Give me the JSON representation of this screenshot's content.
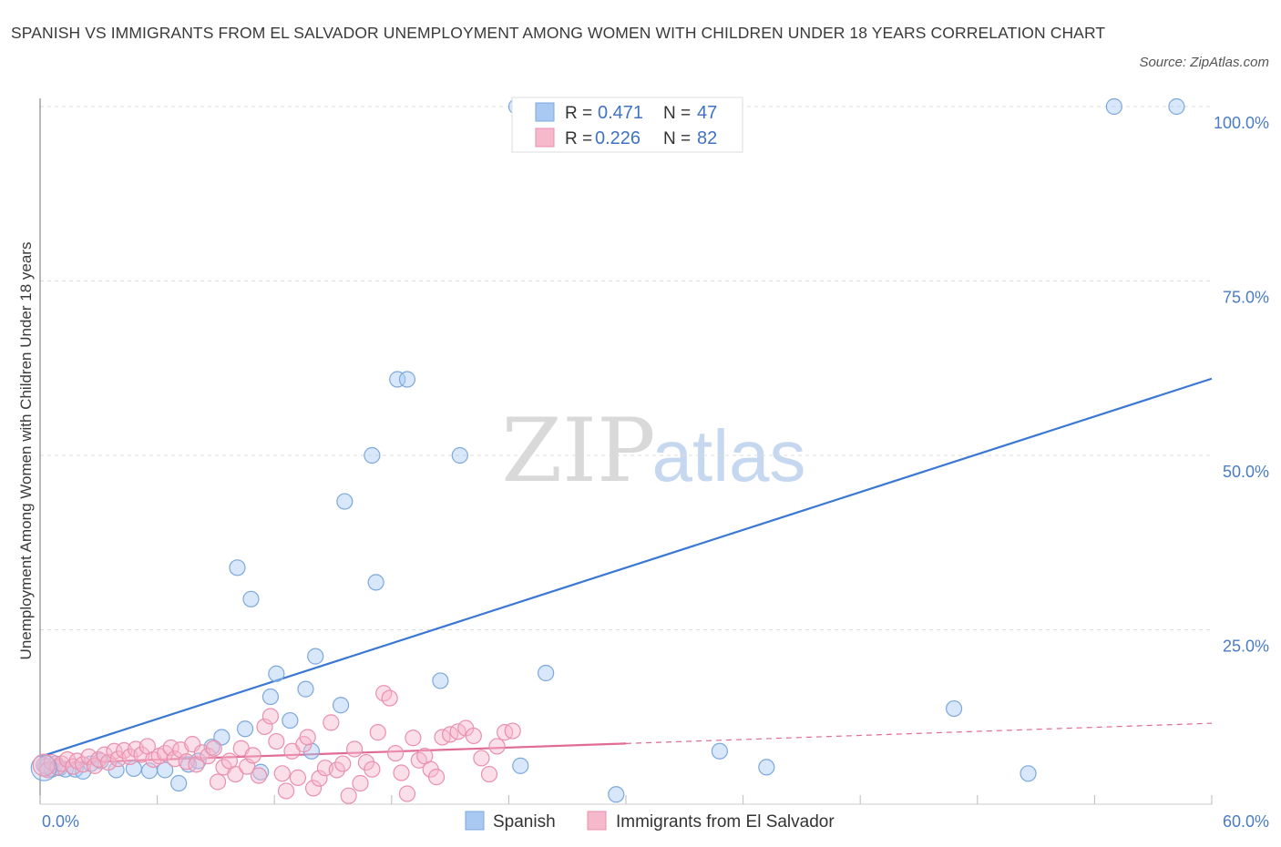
{
  "title": "SPANISH VS IMMIGRANTS FROM EL SALVADOR UNEMPLOYMENT AMONG WOMEN WITH CHILDREN UNDER 18 YEARS CORRELATION CHART",
  "source": "Source: ZipAtlas.com",
  "watermark": {
    "zip": "ZIP",
    "atlas": "atlas"
  },
  "legend": {
    "rows": [
      {
        "r_label": "R =",
        "r_value": "0.471",
        "n_label": "N =",
        "n_value": "47",
        "color": "#a9c9f3"
      },
      {
        "r_label": "R =",
        "r_value": "0.226",
        "n_label": "N =",
        "n_value": "82",
        "color": "#f6b8cb"
      }
    ]
  },
  "bottom_legend": [
    {
      "label": "Spanish",
      "color": "#a9c9f3"
    },
    {
      "label": "Immigrants from El Salvador",
      "color": "#f6b8cb"
    }
  ],
  "chart_data": {
    "type": "scatter",
    "ylabel": "Unemployment Among Women with Children Under 18 years",
    "xlim": [
      0,
      60
    ],
    "ylim": [
      0,
      100
    ],
    "x_tick_labels": {
      "min": "0.0%",
      "max": "60.0%"
    },
    "y_tick_labels": [
      {
        "value": 100,
        "label": "100.0%"
      },
      {
        "value": 75,
        "label": "75.0%"
      },
      {
        "value": 50,
        "label": "50.0%"
      },
      {
        "value": 25,
        "label": "25.0%"
      }
    ],
    "grid": true,
    "series": [
      {
        "name": "Spanish",
        "color": "#a9c9f3",
        "stroke": "#7da8dc",
        "trend": {
          "x0": 0,
          "y0": 6.8,
          "x1": 60,
          "y1": 61.0,
          "color": "#3a78d4"
        },
        "points": [
          [
            0.3,
            5.4
          ],
          [
            0.6,
            5.0
          ],
          [
            0.8,
            5.8
          ],
          [
            1.0,
            5.2
          ],
          [
            1.3,
            5.0
          ],
          [
            1.8,
            5.0
          ],
          [
            2.2,
            4.7
          ],
          [
            2.6,
            5.8
          ],
          [
            3.1,
            6.2
          ],
          [
            3.9,
            4.9
          ],
          [
            4.8,
            5.1
          ],
          [
            5.6,
            4.8
          ],
          [
            6.4,
            4.9
          ],
          [
            7.1,
            3.0
          ],
          [
            7.6,
            5.7
          ],
          [
            8.1,
            6.2
          ],
          [
            8.8,
            8.2
          ],
          [
            9.3,
            9.6
          ],
          [
            10.1,
            33.9
          ],
          [
            10.5,
            10.8
          ],
          [
            10.8,
            29.4
          ],
          [
            11.3,
            4.6
          ],
          [
            11.8,
            15.4
          ],
          [
            12.1,
            18.7
          ],
          [
            12.8,
            12.0
          ],
          [
            13.6,
            16.5
          ],
          [
            13.9,
            7.6
          ],
          [
            14.1,
            21.2
          ],
          [
            15.4,
            14.2
          ],
          [
            15.6,
            43.4
          ],
          [
            17.0,
            50.0
          ],
          [
            17.2,
            31.8
          ],
          [
            18.3,
            60.9
          ],
          [
            18.8,
            60.9
          ],
          [
            20.5,
            17.7
          ],
          [
            21.5,
            50.0
          ],
          [
            24.4,
            100.0
          ],
          [
            24.6,
            5.5
          ],
          [
            25.9,
            18.8
          ],
          [
            29.5,
            1.4
          ],
          [
            31.2,
            100.0
          ],
          [
            34.8,
            7.6
          ],
          [
            37.2,
            5.3
          ],
          [
            46.8,
            13.7
          ],
          [
            50.6,
            4.4
          ],
          [
            55.0,
            100.0
          ],
          [
            58.2,
            100.0
          ]
        ]
      },
      {
        "name": "Immigrants from El Salvador",
        "color": "#f6b8cb",
        "stroke": "#ea8fae",
        "trend": {
          "x0": 0,
          "y0": 5.8,
          "x1": 60,
          "y1": 11.6,
          "solid_until": 30,
          "color": "#e06b94"
        },
        "points": [
          [
            0.2,
            5.6
          ],
          [
            0.4,
            4.9
          ],
          [
            0.6,
            6.0
          ],
          [
            0.9,
            5.3
          ],
          [
            1.1,
            5.8
          ],
          [
            1.4,
            6.4
          ],
          [
            1.7,
            5.4
          ],
          [
            1.9,
            6.2
          ],
          [
            2.2,
            5.7
          ],
          [
            2.5,
            6.8
          ],
          [
            2.8,
            5.5
          ],
          [
            3.0,
            6.4
          ],
          [
            3.3,
            7.1
          ],
          [
            3.5,
            6.0
          ],
          [
            3.8,
            7.6
          ],
          [
            4.0,
            6.5
          ],
          [
            4.3,
            7.7
          ],
          [
            4.6,
            6.8
          ],
          [
            4.9,
            7.9
          ],
          [
            5.2,
            7.1
          ],
          [
            5.5,
            8.3
          ],
          [
            5.8,
            6.4
          ],
          [
            6.1,
            6.9
          ],
          [
            6.4,
            7.3
          ],
          [
            6.7,
            8.1
          ],
          [
            6.9,
            6.5
          ],
          [
            7.2,
            7.8
          ],
          [
            7.5,
            6.1
          ],
          [
            7.8,
            8.6
          ],
          [
            8.0,
            5.7
          ],
          [
            8.3,
            7.4
          ],
          [
            8.6,
            6.9
          ],
          [
            8.9,
            8.0
          ],
          [
            9.1,
            3.2
          ],
          [
            9.4,
            5.3
          ],
          [
            9.7,
            6.2
          ],
          [
            10.0,
            4.3
          ],
          [
            10.3,
            8.0
          ],
          [
            10.6,
            5.4
          ],
          [
            10.9,
            7.0
          ],
          [
            11.2,
            4.1
          ],
          [
            11.5,
            11.1
          ],
          [
            11.8,
            12.6
          ],
          [
            12.1,
            9.0
          ],
          [
            12.4,
            4.4
          ],
          [
            12.6,
            1.9
          ],
          [
            12.9,
            7.6
          ],
          [
            13.2,
            3.8
          ],
          [
            13.5,
            8.6
          ],
          [
            13.7,
            9.6
          ],
          [
            14.0,
            2.3
          ],
          [
            14.3,
            3.7
          ],
          [
            14.6,
            5.2
          ],
          [
            14.9,
            11.7
          ],
          [
            15.2,
            4.9
          ],
          [
            15.5,
            5.8
          ],
          [
            15.8,
            1.2
          ],
          [
            16.1,
            7.9
          ],
          [
            16.4,
            3.0
          ],
          [
            16.7,
            6.0
          ],
          [
            17.0,
            5.0
          ],
          [
            17.3,
            10.3
          ],
          [
            17.6,
            15.9
          ],
          [
            17.9,
            15.2
          ],
          [
            18.2,
            7.3
          ],
          [
            18.5,
            4.5
          ],
          [
            18.8,
            1.5
          ],
          [
            19.1,
            9.5
          ],
          [
            19.4,
            6.3
          ],
          [
            19.7,
            6.9
          ],
          [
            20.0,
            5.0
          ],
          [
            20.3,
            3.9
          ],
          [
            20.6,
            9.6
          ],
          [
            21.0,
            10.0
          ],
          [
            21.4,
            10.4
          ],
          [
            21.8,
            10.9
          ],
          [
            22.2,
            9.8
          ],
          [
            22.6,
            6.6
          ],
          [
            23.0,
            4.3
          ],
          [
            23.4,
            8.3
          ],
          [
            23.8,
            10.3
          ],
          [
            24.2,
            10.5
          ]
        ]
      }
    ]
  }
}
